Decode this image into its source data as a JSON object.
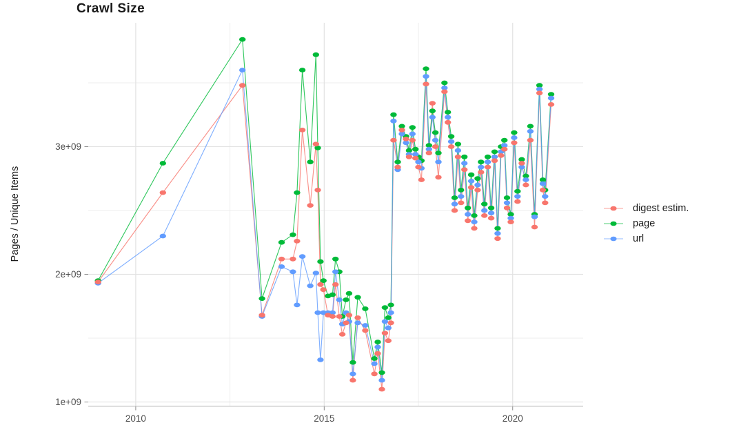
{
  "page": {
    "title": "Crawl Size"
  },
  "chart_data": {
    "type": "line",
    "title": "Crawl Size",
    "xlabel": "",
    "ylabel": "Pages / Unique Items",
    "y_unit": "1e9 (values below are billions of pages / unique items)",
    "grid": "on",
    "legend_position": "right",
    "xlim": [
      2008.74,
      2021.87
    ],
    "ylim": [
      0.97,
      3.97
    ],
    "x_axis": {
      "ticks": [
        {
          "year": 2010,
          "label": "2010"
        },
        {
          "year": 2015,
          "label": "2015"
        },
        {
          "year": 2020,
          "label": "2020"
        }
      ],
      "minor_years": [
        2012.5,
        2017.5
      ]
    },
    "y_axis": {
      "ticks": [
        {
          "value": 1,
          "label": "1e+09"
        },
        {
          "value": 2,
          "label": "2e+09"
        },
        {
          "value": 3,
          "label": "3e+09"
        }
      ],
      "minor_values": [
        1.5,
        2.5,
        3.5
      ]
    },
    "x": [
      2009.0,
      2010.72,
      2012.83,
      2013.35,
      2013.87,
      2014.17,
      2014.28,
      2014.42,
      2014.63,
      2014.78,
      2014.83,
      2014.9,
      2014.98,
      2015.1,
      2015.22,
      2015.3,
      2015.4,
      2015.48,
      2015.58,
      2015.66,
      2015.76,
      2015.89,
      2016.09,
      2016.33,
      2016.42,
      2016.53,
      2016.61,
      2016.7,
      2016.77,
      2016.84,
      2016.95,
      2017.06,
      2017.17,
      2017.25,
      2017.34,
      2017.42,
      2017.5,
      2017.58,
      2017.7,
      2017.78,
      2017.87,
      2017.95,
      2018.03,
      2018.19,
      2018.28,
      2018.37,
      2018.46,
      2018.55,
      2018.63,
      2018.72,
      2018.81,
      2018.9,
      2018.98,
      2019.07,
      2019.16,
      2019.25,
      2019.34,
      2019.43,
      2019.52,
      2019.6,
      2019.69,
      2019.78,
      2019.85,
      2019.95,
      2020.04,
      2020.13,
      2020.24,
      2020.35,
      2020.47,
      2020.58,
      2020.71,
      2020.8,
      2020.86,
      2021.02
    ],
    "series": [
      {
        "name": "digest estim.",
        "color": "#F8766D",
        "values": [
          1.94,
          2.64,
          3.48,
          1.68,
          2.12,
          2.12,
          2.26,
          3.13,
          2.54,
          3.02,
          2.66,
          1.92,
          1.88,
          1.68,
          1.67,
          1.92,
          1.67,
          1.53,
          1.62,
          1.68,
          1.17,
          1.66,
          1.56,
          1.22,
          1.38,
          1.1,
          1.54,
          1.48,
          1.62,
          3.05,
          2.84,
          3.13,
          3.06,
          2.92,
          3.05,
          2.91,
          2.84,
          2.74,
          3.49,
          2.95,
          3.34,
          3.0,
          2.76,
          3.43,
          3.19,
          3.0,
          2.5,
          2.92,
          2.56,
          2.82,
          2.42,
          2.68,
          2.36,
          2.66,
          2.8,
          2.46,
          2.84,
          2.44,
          2.89,
          2.28,
          2.93,
          2.98,
          2.52,
          2.41,
          3.03,
          2.57,
          2.87,
          2.7,
          3.05,
          2.37,
          3.42,
          2.66,
          2.56,
          3.33
        ]
      },
      {
        "name": "page",
        "color": "#00BA38",
        "values": [
          1.95,
          2.87,
          3.84,
          1.81,
          2.25,
          2.31,
          2.64,
          3.6,
          2.88,
          3.72,
          2.99,
          2.1,
          1.95,
          1.83,
          1.84,
          2.12,
          2.02,
          1.67,
          1.8,
          1.85,
          1.31,
          1.82,
          1.73,
          1.34,
          1.47,
          1.23,
          1.74,
          1.66,
          1.76,
          3.25,
          2.88,
          3.16,
          3.08,
          2.97,
          3.15,
          2.98,
          2.92,
          2.89,
          3.61,
          3.01,
          3.28,
          3.11,
          2.95,
          3.5,
          3.27,
          3.08,
          2.6,
          3.02,
          2.66,
          2.92,
          2.52,
          2.78,
          2.46,
          2.75,
          2.88,
          2.55,
          2.92,
          2.52,
          2.96,
          2.36,
          3.0,
          3.05,
          2.6,
          2.47,
          3.11,
          2.65,
          2.9,
          2.77,
          3.16,
          2.47,
          3.48,
          2.74,
          2.66,
          3.41
        ]
      },
      {
        "name": "url",
        "color": "#619CFF",
        "values": [
          1.93,
          2.3,
          3.6,
          1.67,
          2.06,
          2.02,
          1.76,
          2.14,
          1.91,
          2.01,
          1.7,
          1.33,
          1.7,
          1.7,
          1.7,
          2.02,
          1.8,
          1.61,
          1.7,
          1.63,
          1.22,
          1.62,
          1.6,
          1.3,
          1.43,
          1.17,
          1.63,
          1.58,
          1.7,
          3.2,
          2.82,
          3.1,
          3.03,
          2.94,
          3.1,
          2.94,
          2.88,
          2.83,
          3.55,
          2.98,
          3.23,
          3.05,
          2.88,
          3.46,
          3.23,
          3.04,
          2.55,
          2.97,
          2.61,
          2.87,
          2.47,
          2.73,
          2.41,
          2.7,
          2.84,
          2.5,
          2.88,
          2.48,
          2.92,
          2.32,
          2.96,
          3.01,
          2.56,
          2.44,
          3.07,
          2.61,
          2.84,
          2.74,
          3.12,
          2.45,
          3.45,
          2.71,
          2.61,
          3.38
        ]
      }
    ],
    "style": {
      "grid_major_color": "#E2E2E2",
      "grid_minor_color": "#EDEDED",
      "axis_line_color": "#C6C6C6",
      "tick_color": "#8C8C8C",
      "tick_label_color": "#4D4D4D",
      "background": "#FFFFFF"
    }
  }
}
